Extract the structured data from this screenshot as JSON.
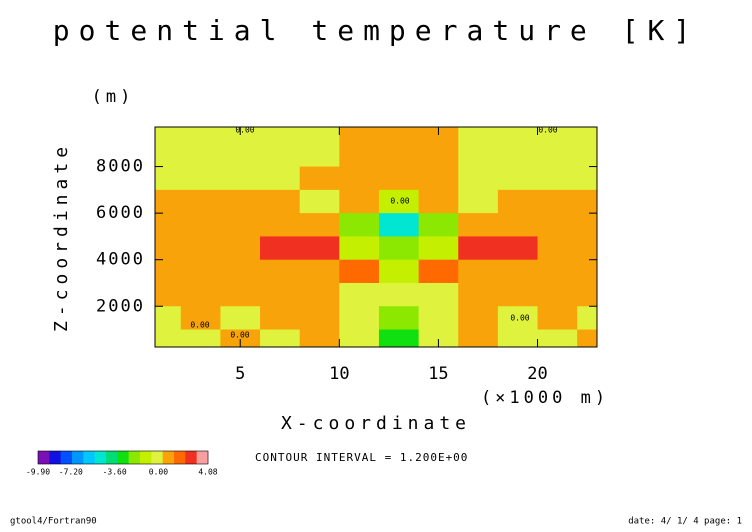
{
  "chart_data": {
    "type": "contour",
    "title": "potential temperature [K]",
    "y_unit": "(m)",
    "y_label": "Z-coordinate",
    "x_label": "X-coordinate",
    "x_unit": "(×1000 m)",
    "x": [
      1,
      3,
      5,
      7,
      9,
      11,
      13,
      15,
      17,
      19,
      21,
      23
    ],
    "y": [
      9500,
      8500,
      7500,
      6500,
      5500,
      4500,
      3500,
      2500,
      1500,
      500
    ],
    "z": [
      [
        -0.4,
        -0.4,
        -0.4,
        -0.4,
        -0.4,
        0.4,
        0.4,
        0.4,
        -0.4,
        -0.4,
        -0.4,
        -0.4
      ],
      [
        -0.4,
        -0.4,
        -0.4,
        -0.4,
        -0.4,
        0.4,
        0.4,
        0.4,
        -0.4,
        -0.4,
        -0.4,
        -0.4
      ],
      [
        -0.4,
        -0.4,
        -0.4,
        -0.4,
        0.4,
        0.4,
        0.4,
        0.4,
        -0.4,
        -0.4,
        -0.4,
        -0.4
      ],
      [
        0.4,
        0.4,
        0.4,
        0.4,
        -0.4,
        0.4,
        -0.8,
        0.4,
        -0.4,
        0.4,
        0.4,
        0.4
      ],
      [
        0.4,
        0.4,
        0.4,
        0.4,
        1.2,
        -2,
        -5,
        -2,
        1.2,
        0.4,
        0.4,
        0.4
      ],
      [
        0.4,
        0.4,
        0.4,
        2.5,
        2.5,
        -1.5,
        -2,
        -1.5,
        2.5,
        2.5,
        0.4,
        0.4
      ],
      [
        0.4,
        0.4,
        0.4,
        0.4,
        0.4,
        1.5,
        -1,
        1.5,
        0.4,
        0.4,
        0.4,
        0.4
      ],
      [
        0.4,
        0.4,
        0.4,
        0.4,
        0.4,
        -0.4,
        -0.4,
        -0.4,
        0.4,
        0.4,
        0.4,
        0.4
      ],
      [
        -0.4,
        0.4,
        -0.4,
        0.4,
        0.4,
        -0.4,
        -2,
        -0.4,
        0.4,
        -0.4,
        0.4,
        -0.4
      ],
      [
        -0.4,
        -0.4,
        0.4,
        -0.4,
        0.4,
        -0.4,
        -3,
        -0.4,
        0.4,
        -0.4,
        -0.4,
        0.4
      ]
    ],
    "xlim": [
      0.7,
      23.0
    ],
    "ylim": [
      250,
      9700
    ],
    "xticks": [
      5,
      10,
      15,
      20
    ],
    "yticks": [
      2000,
      4000,
      6000,
      8000
    ],
    "clim": [
      -9.9,
      4.08
    ],
    "colors": [
      "#7a10b8",
      "#1010e0",
      "#0050ff",
      "#0096ff",
      "#00c8ff",
      "#00e6d2",
      "#00dc78",
      "#10e010",
      "#8ce800",
      "#c4f000",
      "#dff23e",
      "#f8a30a",
      "#ff6a00",
      "#f03020",
      "#f8a0a0"
    ],
    "colorbar_ticks": [
      {
        "value": -9.9,
        "label": "-9.90"
      },
      {
        "value": -7.2,
        "label": "-7.20"
      },
      {
        "value": -3.6,
        "label": "-3.60"
      },
      {
        "value": 0,
        "label": "0.00"
      },
      {
        "value": 4.08,
        "label": "4.08"
      }
    ],
    "contour_labels": [
      "0.00",
      "0.00",
      "0.00",
      "0.00",
      "0.00",
      "0.00"
    ],
    "contour_interval": "CONTOUR INTERVAL = 1.200E+00",
    "footer_left": "gtool4/Fortran90",
    "footer_right": "date: 4/ 1/ 4 page: 1"
  }
}
